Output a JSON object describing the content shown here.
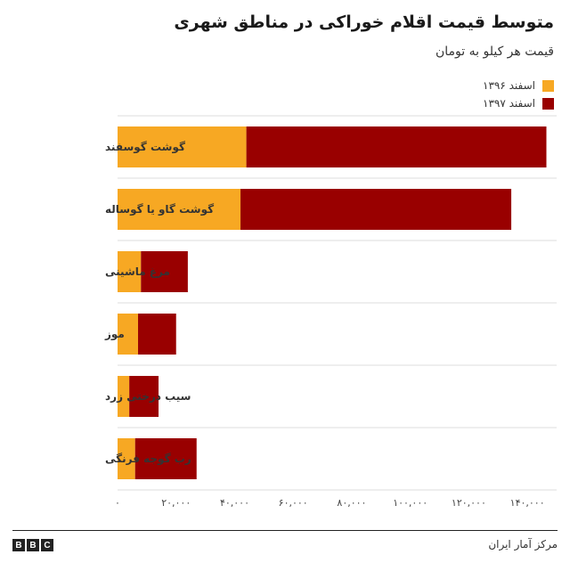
{
  "chart_data": {
    "type": "bar",
    "orientation": "horizontal",
    "stacked": true,
    "title": "متوسط قیمت اقلام خوراکی در مناطق شهری",
    "subtitle": "قیمت هر کیلو به تومان",
    "categories": [
      "گوشت گوسفند",
      "گوشت گاو یا گوساله",
      "مرغ ماشینی",
      "موز",
      "سیب درختی زرد",
      "رب گوجه فرنگی"
    ],
    "series": [
      {
        "name": "اسفند ۱۳۹۶",
        "color": "#f7a823",
        "values": [
          44000,
          42000,
          8000,
          7000,
          4000,
          6000
        ]
      },
      {
        "name": "اسفند ۱۳۹۷",
        "color": "#990000",
        "values": [
          102500,
          92500,
          16000,
          13000,
          10000,
          21000
        ]
      }
    ],
    "xlim": [
      0,
      150000
    ],
    "xticks": [
      0,
      20000,
      40000,
      60000,
      80000,
      100000,
      120000,
      140000
    ],
    "xtick_labels": [
      "۰",
      "۲۰,۰۰۰",
      "۴۰,۰۰۰",
      "۶۰,۰۰۰",
      "۸۰,۰۰۰",
      "۱۰۰,۰۰۰",
      "۱۲۰,۰۰۰",
      "۱۴۰,۰۰۰"
    ],
    "grid": true,
    "legend": "top-right"
  },
  "footer": {
    "logo_letters": [
      "B",
      "B",
      "C"
    ],
    "source": "مرکز آمار ایران"
  }
}
